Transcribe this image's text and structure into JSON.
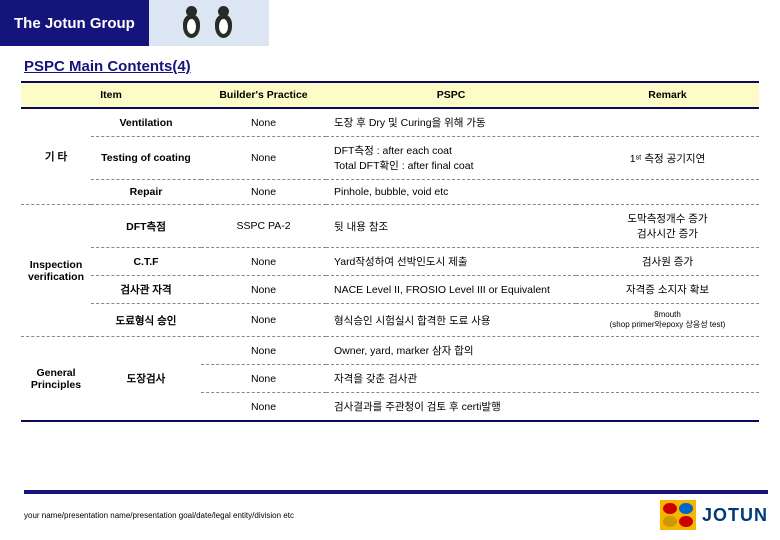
{
  "header": {
    "group": "The Jotun Group"
  },
  "subtitle": "PSPC Main Contents(4)",
  "table": {
    "headers": {
      "item": "Item",
      "bp": "Builder's Practice",
      "pspc": "PSPC",
      "remark": "Remark"
    },
    "sections": [
      {
        "label": "기 타",
        "rowspan": 3,
        "rows": [
          {
            "sub": "Ventilation",
            "bp": "None",
            "pspc": "도장 후 Dry 및 Curing을 위해 가동",
            "remark": ""
          },
          {
            "sub": "Testing of coating",
            "bp": "None",
            "pspc": "DFT측정 : after each coat\nTotal DFT확인 : after final coat",
            "remark": "1ˢᵗ 측정 공기지연"
          },
          {
            "sub": "Repair",
            "bp": "None",
            "pspc": "Pinhole, bubble, void etc",
            "remark": ""
          }
        ]
      },
      {
        "label": "Inspection verification",
        "rowspan": 4,
        "rows": [
          {
            "sub": "DFT측점",
            "bp": "SSPC PA-2",
            "pspc": "뒷 내용 참조",
            "remark": "도막측정개수 증가\n검사시간 증가"
          },
          {
            "sub": "C.T.F",
            "bp": "None",
            "pspc": "Yard작성하여 선박인도시 제출",
            "remark": "검사원 증가"
          },
          {
            "sub": "검사관 자격",
            "bp": "None",
            "pspc": "NACE Level II, FROSIO Level III or Equivalent",
            "remark": "자격증 소지자 확보"
          },
          {
            "sub": "도료형식 승인",
            "bp": "None",
            "pspc": "형식승인 시험실시 합격한 도료 사용",
            "remark": "8mouth\n(shop primer와epoxy 상응성 test)"
          }
        ]
      },
      {
        "label": "General Principles",
        "rowspan": 3,
        "rows": [
          {
            "sub": "도장검사",
            "subRowspan": 3,
            "bp": "None",
            "pspc": "Owner, yard, marker 삼자 합의",
            "remark": ""
          },
          {
            "bp": "None",
            "pspc": "자격을 갖춘 검사관",
            "remark": ""
          },
          {
            "bp": "None",
            "pspc": "검사결과를 주관청이 검토 후 certi발행",
            "remark": ""
          }
        ]
      }
    ]
  },
  "footer": {
    "text": "your name/presentation name/presentation goal/date/legal entity/division etc",
    "logo": "JOTUN"
  }
}
